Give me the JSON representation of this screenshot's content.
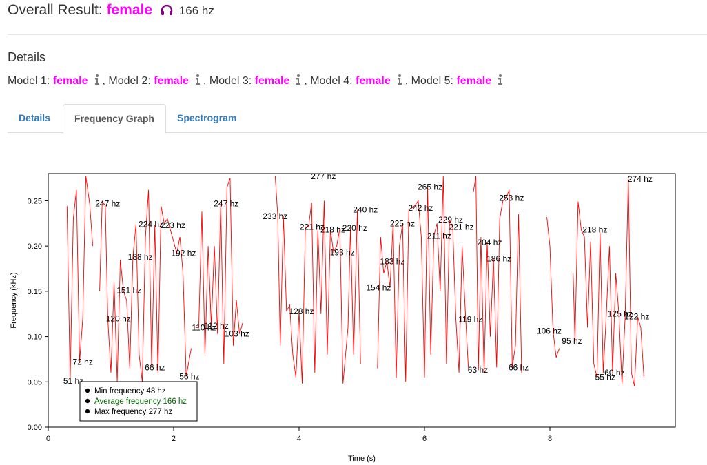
{
  "header": {
    "label": "Overall Result:",
    "gender": "female",
    "frequency": "166 hz",
    "icon": "headphones-icon",
    "gender_color": "#ff00ff"
  },
  "details": {
    "title": "Details",
    "models": [
      {
        "label": "Model 1:",
        "value": "female",
        "sep": ""
      },
      {
        "label": "Model 2:",
        "value": "female",
        "sep": ","
      },
      {
        "label": "Model 3:",
        "value": "female",
        "sep": ","
      },
      {
        "label": "Model 4:",
        "value": "female",
        "sep": ","
      },
      {
        "label": "Model 5:",
        "value": "female",
        "sep": ","
      }
    ]
  },
  "tabs": [
    {
      "label": "Details",
      "active": false
    },
    {
      "label": "Frequency Graph",
      "active": true
    },
    {
      "label": "Spectrogram",
      "active": false
    }
  ],
  "chart_data": {
    "type": "line",
    "xlabel": "Time (s)",
    "ylabel": "Frequency (kHz)",
    "xlim": [
      0,
      10
    ],
    "ylim": [
      0,
      0.28
    ],
    "x_ticks": [
      0,
      2,
      4,
      6,
      8
    ],
    "y_ticks": [
      0.0,
      0.05,
      0.1,
      0.15,
      0.2,
      0.25
    ],
    "y_tick_labels": [
      "0.00",
      "0.05",
      "0.10",
      "0.15",
      "0.20",
      "0.25"
    ],
    "line_color": "#ff0000",
    "legend": {
      "placement": "bottom-left",
      "items": [
        {
          "label": "Min frequency 48 hz",
          "color": "#000000"
        },
        {
          "label": "Average frequency 166 hz",
          "color": "#006400"
        },
        {
          "label": "Max frequency 277 hz",
          "color": "#000000"
        }
      ]
    },
    "segments": [
      [
        [
          0.3,
          0.244
        ],
        [
          0.35,
          0.051
        ],
        [
          0.4,
          0.23
        ],
        [
          0.45,
          0.262
        ],
        [
          0.5,
          0.072
        ],
        [
          0.55,
          0.12
        ],
        [
          0.6,
          0.277
        ],
        [
          0.66,
          0.247
        ],
        [
          0.71,
          0.2
        ]
      ],
      [
        [
          0.82,
          0.15
        ],
        [
          0.86,
          0.249
        ],
        [
          0.91,
          0.245
        ],
        [
          0.95,
          0.12
        ],
        [
          1.0,
          0.06
        ],
        [
          1.05,
          0.16
        ],
        [
          1.1,
          0.05
        ],
        [
          1.15,
          0.185
        ],
        [
          1.2,
          0.15
        ],
        [
          1.25,
          0.14
        ],
        [
          1.3,
          0.065
        ],
        [
          1.35,
          0.188
        ],
        [
          1.4,
          0.224
        ],
        [
          1.45,
          0.08
        ],
        [
          1.5,
          0.05
        ],
        [
          1.55,
          0.21
        ],
        [
          1.6,
          0.262
        ],
        [
          1.65,
          0.066
        ],
        [
          1.7,
          0.223
        ],
        [
          1.75,
          0.06
        ],
        [
          1.8,
          0.244
        ],
        [
          1.85,
          0.225
        ],
        [
          1.9,
          0.23
        ],
        [
          2.0,
          0.205
        ],
        [
          2.05,
          0.192
        ],
        [
          2.1,
          0.21
        ],
        [
          2.15,
          0.17
        ],
        [
          2.2,
          0.056
        ],
        [
          2.28,
          0.087
        ]
      ],
      [
        [
          2.35,
          0.11
        ],
        [
          2.4,
          0.11
        ],
        [
          2.45,
          0.238
        ],
        [
          2.5,
          0.08
        ],
        [
          2.55,
          0.2
        ],
        [
          2.6,
          0.112
        ],
        [
          2.65,
          0.2
        ],
        [
          2.7,
          0.103
        ],
        [
          2.75,
          0.247
        ],
        [
          2.8,
          0.07
        ],
        [
          2.85,
          0.265
        ],
        [
          2.9,
          0.275
        ],
        [
          2.95,
          0.09
        ],
        [
          3.0,
          0.14
        ],
        [
          3.05,
          0.103
        ],
        [
          3.1,
          0.115
        ]
      ],
      [
        [
          3.62,
          0.277
        ],
        [
          3.66,
          0.233
        ],
        [
          3.7,
          0.09
        ],
        [
          3.75,
          0.233
        ],
        [
          3.8,
          0.128
        ],
        [
          3.85,
          0.135
        ],
        [
          3.9,
          0.08
        ],
        [
          3.95,
          0.055
        ],
        [
          4.0,
          0.128
        ],
        [
          4.05,
          0.048
        ],
        [
          4.1,
          0.221
        ],
        [
          4.15,
          0.221
        ],
        [
          4.2,
          0.248
        ],
        [
          4.25,
          0.06
        ],
        [
          4.3,
          0.218
        ],
        [
          4.35,
          0.125
        ],
        [
          4.4,
          0.25
        ],
        [
          4.45,
          0.08
        ],
        [
          4.5,
          0.218
        ],
        [
          4.55,
          0.193
        ],
        [
          4.6,
          0.2
        ],
        [
          4.65,
          0.22
        ],
        [
          4.7,
          0.048
        ],
        [
          4.78,
          0.11
        ],
        [
          4.82,
          0.22
        ],
        [
          4.87,
          0.08
        ],
        [
          4.93,
          0.24
        ],
        [
          4.98,
          0.07
        ]
      ],
      [
        [
          5.25,
          0.065
        ],
        [
          5.3,
          0.21
        ],
        [
          5.35,
          0.17
        ],
        [
          5.4,
          0.183
        ],
        [
          5.45,
          0.154
        ],
        [
          5.5,
          0.225
        ],
        [
          5.55,
          0.054
        ],
        [
          5.6,
          0.2
        ],
        [
          5.65,
          0.225
        ],
        [
          5.7,
          0.05
        ],
        [
          5.75,
          0.24
        ],
        [
          5.8,
          0.242
        ],
        [
          5.85,
          0.245
        ],
        [
          5.9,
          0.25
        ],
        [
          5.95,
          0.21
        ],
        [
          6.0,
          0.055
        ],
        [
          6.05,
          0.265
        ],
        [
          6.1,
          0.08
        ],
        [
          6.15,
          0.211
        ],
        [
          6.2,
          0.225
        ],
        [
          6.25,
          0.15
        ],
        [
          6.3,
          0.277
        ],
        [
          6.35,
          0.07
        ],
        [
          6.4,
          0.229
        ],
        [
          6.45,
          0.221
        ],
        [
          6.5,
          0.12
        ],
        [
          6.55,
          0.06
        ],
        [
          6.6,
          0.2
        ],
        [
          6.65,
          0.13
        ],
        [
          6.7,
          0.065
        ]
      ],
      [
        [
          6.78,
          0.26
        ],
        [
          6.82,
          0.277
        ],
        [
          6.86,
          0.063
        ],
        [
          6.9,
          0.21
        ],
        [
          6.95,
          0.06
        ],
        [
          7.0,
          0.204
        ],
        [
          7.05,
          0.1
        ],
        [
          7.1,
          0.186
        ],
        [
          7.15,
          0.066
        ],
        [
          7.2,
          0.23
        ],
        [
          7.25,
          0.25
        ],
        [
          7.3,
          0.253
        ],
        [
          7.35,
          0.262
        ],
        [
          7.4,
          0.066
        ],
        [
          7.45,
          0.09
        ],
        [
          7.5,
          0.235
        ],
        [
          7.55,
          0.06
        ]
      ],
      [
        [
          7.95,
          0.232
        ],
        [
          8.0,
          0.2
        ],
        [
          8.05,
          0.106
        ],
        [
          8.1,
          0.077
        ],
        [
          8.15,
          0.087
        ]
      ],
      [
        [
          8.37,
          0.17
        ],
        [
          8.4,
          0.095
        ],
        [
          8.45,
          0.249
        ],
        [
          8.5,
          0.218
        ],
        [
          8.55,
          0.21
        ],
        [
          8.6,
          0.11
        ],
        [
          8.65,
          0.205
        ],
        [
          8.7,
          0.07
        ],
        [
          8.75,
          0.055
        ],
        [
          8.8,
          0.215
        ],
        [
          8.85,
          0.06
        ],
        [
          8.9,
          0.125
        ],
        [
          8.95,
          0.2
        ],
        [
          9.0,
          0.06
        ],
        [
          9.05,
          0.17
        ],
        [
          9.1,
          0.125
        ],
        [
          9.15,
          0.047
        ],
        [
          9.2,
          0.122
        ],
        [
          9.25,
          0.274
        ],
        [
          9.3,
          0.06
        ],
        [
          9.35,
          0.045
        ],
        [
          9.4,
          0.122
        ],
        [
          9.45,
          0.11
        ],
        [
          9.5,
          0.054
        ]
      ]
    ],
    "annotations": [
      {
        "x": 0.35,
        "y": 0.051,
        "text": "51 hz"
      },
      {
        "x": 0.5,
        "y": 0.072,
        "text": "72 hz"
      },
      {
        "x": 0.86,
        "y": 0.247,
        "text": "247 hz"
      },
      {
        "x": 1.03,
        "y": 0.12,
        "text": "120 hz"
      },
      {
        "x": 1.2,
        "y": 0.151,
        "text": "151 hz"
      },
      {
        "x": 1.38,
        "y": 0.188,
        "text": "188 hz"
      },
      {
        "x": 1.55,
        "y": 0.224,
        "text": "224 hz"
      },
      {
        "x": 1.65,
        "y": 0.066,
        "text": "66 hz"
      },
      {
        "x": 1.9,
        "y": 0.223,
        "text": "223 hz"
      },
      {
        "x": 2.07,
        "y": 0.192,
        "text": "192 hz"
      },
      {
        "x": 2.2,
        "y": 0.056,
        "text": "56 hz"
      },
      {
        "x": 2.4,
        "y": 0.11,
        "text": "110 hz"
      },
      {
        "x": 2.6,
        "y": 0.112,
        "text": "112 hz"
      },
      {
        "x": 2.75,
        "y": 0.247,
        "text": "247 hz"
      },
      {
        "x": 2.92,
        "y": 0.103,
        "text": "103 hz"
      },
      {
        "x": 3.53,
        "y": 0.233,
        "text": "233 hz"
      },
      {
        "x": 3.95,
        "y": 0.128,
        "text": "128 hz"
      },
      {
        "x": 4.12,
        "y": 0.221,
        "text": "221 hz"
      },
      {
        "x": 4.3,
        "y": 0.277,
        "text": "277 hz"
      },
      {
        "x": 4.45,
        "y": 0.218,
        "text": "218 hz"
      },
      {
        "x": 4.6,
        "y": 0.193,
        "text": "193 hz"
      },
      {
        "x": 4.8,
        "y": 0.22,
        "text": "220 hz"
      },
      {
        "x": 4.97,
        "y": 0.24,
        "text": "240 hz"
      },
      {
        "x": 5.18,
        "y": 0.154,
        "text": "154 hz"
      },
      {
        "x": 5.4,
        "y": 0.183,
        "text": "183 hz"
      },
      {
        "x": 5.56,
        "y": 0.225,
        "text": "225 hz"
      },
      {
        "x": 5.85,
        "y": 0.242,
        "text": "242 hz"
      },
      {
        "x": 6.0,
        "y": 0.265,
        "text": "265 hz"
      },
      {
        "x": 6.15,
        "y": 0.211,
        "text": "211 hz"
      },
      {
        "x": 6.33,
        "y": 0.229,
        "text": "229 hz"
      },
      {
        "x": 6.5,
        "y": 0.221,
        "text": "221 hz"
      },
      {
        "x": 6.65,
        "y": 0.119,
        "text": "119 hz"
      },
      {
        "x": 6.8,
        "y": 0.063,
        "text": "63 hz"
      },
      {
        "x": 6.95,
        "y": 0.204,
        "text": "204 hz"
      },
      {
        "x": 7.1,
        "y": 0.186,
        "text": "186 hz"
      },
      {
        "x": 7.3,
        "y": 0.253,
        "text": "253 hz"
      },
      {
        "x": 7.45,
        "y": 0.066,
        "text": "66 hz"
      },
      {
        "x": 7.9,
        "y": 0.106,
        "text": "106 hz"
      },
      {
        "x": 8.3,
        "y": 0.095,
        "text": "95 hz"
      },
      {
        "x": 8.63,
        "y": 0.218,
        "text": "218 hz"
      },
      {
        "x": 8.83,
        "y": 0.055,
        "text": "55 hz"
      },
      {
        "x": 8.98,
        "y": 0.06,
        "text": "60 hz"
      },
      {
        "x": 9.03,
        "y": 0.125,
        "text": "125 hz"
      },
      {
        "x": 9.3,
        "y": 0.122,
        "text": "122 hz"
      },
      {
        "x": 9.35,
        "y": 0.274,
        "text": "274 hz"
      }
    ]
  }
}
